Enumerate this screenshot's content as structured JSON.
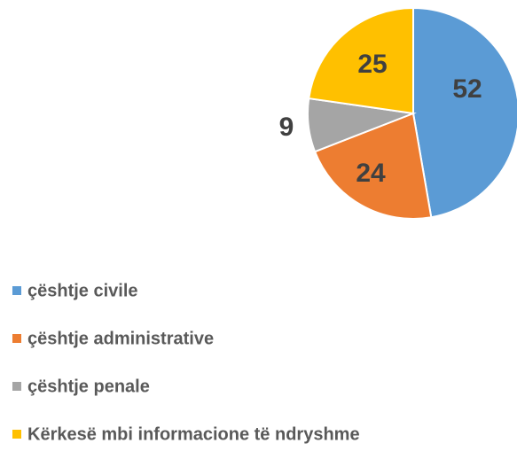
{
  "chart_data": {
    "type": "pie",
    "categories": [
      "çështje civile",
      "çështje administrative",
      "çështje penale",
      "Kërkesë mbi informacione të ndryshme"
    ],
    "values": [
      52,
      24,
      9,
      25
    ],
    "colors": [
      "#5b9bd5",
      "#ed7d31",
      "#a5a5a5",
      "#ffc000"
    ],
    "legend": "bottom-left"
  }
}
